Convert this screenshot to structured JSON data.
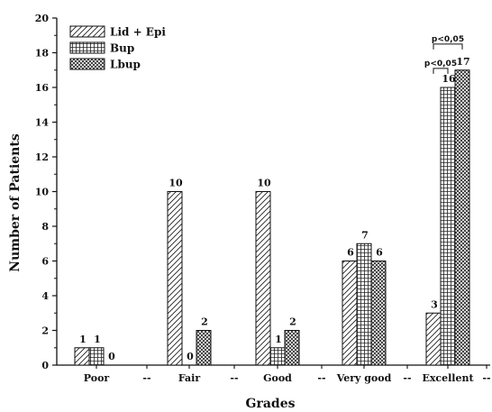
{
  "chart_data": {
    "type": "bar",
    "title": "",
    "xlabel": "Grades",
    "ylabel": "Number of Patients",
    "ylim": [
      0,
      20
    ],
    "yticks": [
      0,
      2,
      4,
      6,
      8,
      10,
      12,
      14,
      16,
      18,
      20
    ],
    "categories": [
      "Poor",
      "Fair",
      "Good",
      "Very good",
      "Excellent"
    ],
    "separator_label": "--",
    "grid": false,
    "legend_position": "top-left",
    "series": [
      {
        "name": "Lid + Epi",
        "pattern": "diagonal-hatch",
        "values": [
          1,
          10,
          10,
          6,
          3
        ],
        "labels": [
          "1",
          "10",
          "10",
          "6",
          "3"
        ]
      },
      {
        "name": "Bup",
        "pattern": "grid",
        "values": [
          1,
          0,
          1,
          7,
          16
        ],
        "labels": [
          "1",
          "0",
          "1",
          "7",
          "16"
        ]
      },
      {
        "name": "Lbup",
        "pattern": "crosshatch",
        "values": [
          0,
          2,
          2,
          6,
          17
        ],
        "labels": [
          "0",
          "2",
          "2",
          "6",
          "17"
        ]
      }
    ],
    "annotations": [
      {
        "text": "p<0,05",
        "category": "Excellent",
        "from_series": "Lid + Epi",
        "to_series": "Bup"
      },
      {
        "text": "p<0,05",
        "category": "Excellent",
        "from_series": "Lid + Epi",
        "to_series": "Lbup"
      }
    ]
  }
}
